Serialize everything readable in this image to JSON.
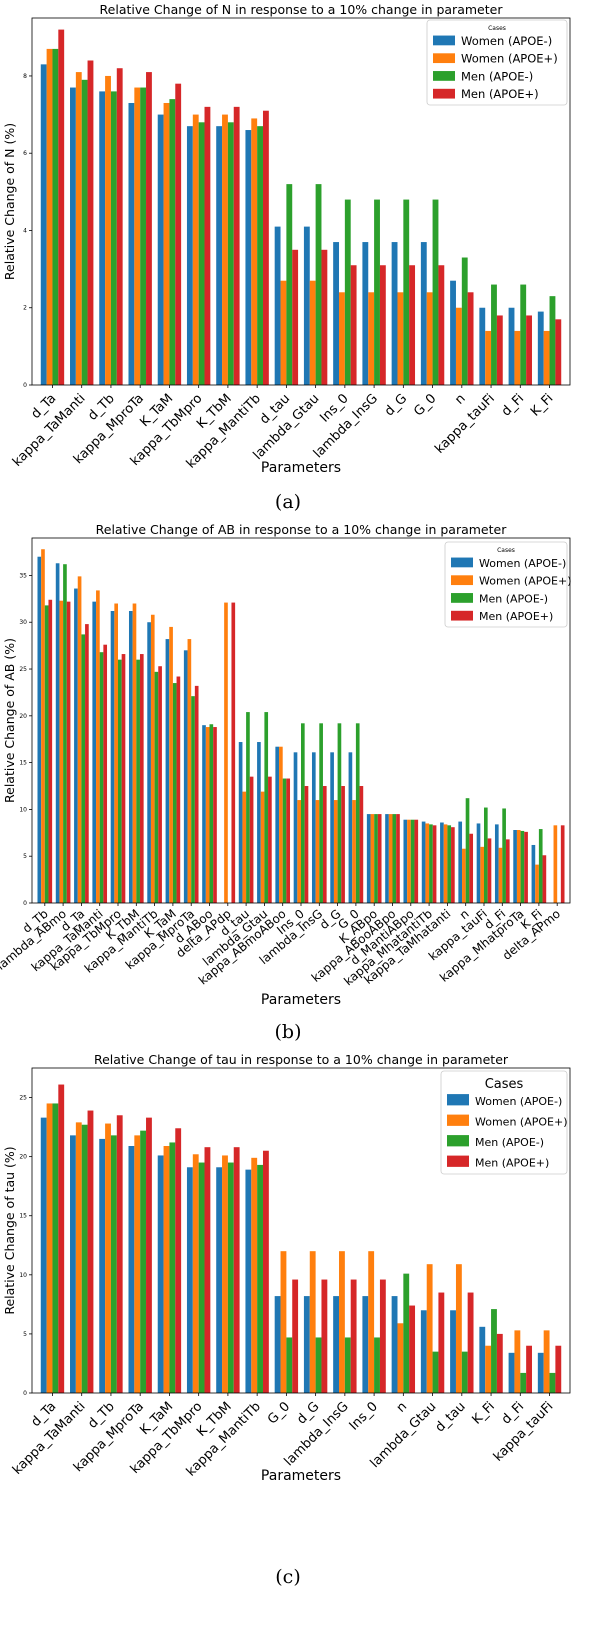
{
  "chart_data": [
    {
      "type": "bar",
      "title": "Relative Change of N in response to a 10% change in parameter",
      "xlabel": "Parameters",
      "ylabel": "Relative Change of N (%)",
      "ylim": [
        0,
        9.5
      ],
      "yticks": [
        0,
        2,
        4,
        6,
        8
      ],
      "legend_title": "Cases",
      "legend_position": "top-right",
      "caption": "(a)",
      "categories": [
        "d_Ta",
        "kappa_TaManti",
        "d_Tb",
        "kappa_MproTa",
        "K_TaM",
        "kappa_TbMpro",
        "K_TbM",
        "kappa_MantiTb",
        "d_tau",
        "lambda_Gtau",
        "Ins_0",
        "lambda_InsG",
        "d_G",
        "G_0",
        "n",
        "kappa_tauFi",
        "d_Fi",
        "K_Fi"
      ],
      "series": [
        {
          "name": "Women (APOE-)",
          "color": "#1f77b4",
          "values": [
            8.3,
            7.7,
            7.6,
            7.3,
            7.0,
            6.7,
            6.7,
            6.6,
            4.1,
            4.1,
            3.7,
            3.7,
            3.7,
            3.7,
            2.7,
            2.0,
            2.0,
            1.9
          ]
        },
        {
          "name": "Women (APOE+)",
          "color": "#ff7f0e",
          "values": [
            8.7,
            8.1,
            8.0,
            7.7,
            7.3,
            7.0,
            7.0,
            6.9,
            2.7,
            2.7,
            2.4,
            2.4,
            2.4,
            2.4,
            2.0,
            1.4,
            1.4,
            1.4
          ]
        },
        {
          "name": "Men (APOE-)",
          "color": "#2ca02c",
          "values": [
            8.7,
            7.9,
            7.6,
            7.7,
            7.4,
            6.8,
            6.8,
            6.7,
            5.2,
            5.2,
            4.8,
            4.8,
            4.8,
            4.8,
            3.3,
            2.6,
            2.6,
            2.3
          ]
        },
        {
          "name": "Men (APOE+)",
          "color": "#d62728",
          "values": [
            9.2,
            8.4,
            8.2,
            8.1,
            7.8,
            7.2,
            7.2,
            7.1,
            3.5,
            3.5,
            3.1,
            3.1,
            3.1,
            3.1,
            2.4,
            1.8,
            1.8,
            1.7
          ]
        }
      ]
    },
    {
      "type": "bar",
      "title": "Relative Change of AB in response to a 10% change in parameter",
      "xlabel": "Parameters",
      "ylabel": "Relative Change of AB (%)",
      "ylim": [
        0,
        39
      ],
      "yticks": [
        0,
        5,
        10,
        15,
        20,
        25,
        30,
        35
      ],
      "legend_title": "Cases",
      "legend_position": "top-right",
      "caption": "(b)",
      "categories": [
        "d_Tb",
        "lambda_ABmo",
        "d_Ta",
        "kappa_TaManti",
        "kappa_TbMpro",
        "K_TbM",
        "kappa_MantiTb",
        "K_TaM",
        "kappa_MproTa",
        "d_ABoo",
        "delta_APdp",
        "d_tau",
        "lambda_Gtau",
        "kappa_ABmoABoo",
        "Ins_0",
        "lambda_InsG",
        "d_G",
        "G_0",
        "K_ABpo",
        "kappa_ABooABpo",
        "d_MantiABpo",
        "kappa_MhatantiTb",
        "kappa_TaMhatanti",
        "n",
        "kappa_tauFi",
        "d_Fi",
        "kappa_MhatproTa",
        "K_Fi",
        "delta_APmo"
      ],
      "series": [
        {
          "name": "Women (APOE-)",
          "color": "#1f77b4",
          "values": [
            37.0,
            36.3,
            33.6,
            32.2,
            31.2,
            31.2,
            30.0,
            28.2,
            27.0,
            19.0,
            0,
            17.2,
            17.2,
            16.7,
            16.1,
            16.1,
            16.1,
            16.1,
            9.5,
            9.5,
            8.9,
            8.7,
            8.6,
            8.7,
            8.5,
            8.4,
            7.8,
            6.2,
            0
          ]
        },
        {
          "name": "Women (APOE+)",
          "color": "#ff7f0e",
          "values": [
            37.8,
            32.3,
            34.9,
            33.4,
            32.0,
            32.0,
            30.8,
            29.5,
            28.2,
            18.8,
            32.1,
            11.9,
            11.9,
            16.7,
            11.0,
            11.0,
            11.0,
            11.0,
            9.5,
            9.5,
            8.9,
            8.5,
            8.4,
            5.8,
            6.0,
            5.9,
            7.8,
            4.1,
            8.3
          ]
        },
        {
          "name": "Men (APOE-)",
          "color": "#2ca02c",
          "values": [
            31.8,
            36.2,
            28.7,
            26.8,
            26.0,
            26.0,
            24.7,
            23.5,
            22.1,
            19.1,
            0,
            20.4,
            20.4,
            13.3,
            19.2,
            19.2,
            19.2,
            19.2,
            9.5,
            9.5,
            8.9,
            8.4,
            8.3,
            11.2,
            10.2,
            10.1,
            7.7,
            7.9,
            0
          ]
        },
        {
          "name": "Men (APOE+)",
          "color": "#d62728",
          "values": [
            32.4,
            32.2,
            29.8,
            27.6,
            26.6,
            26.6,
            25.3,
            24.2,
            23.2,
            18.8,
            32.1,
            13.5,
            13.5,
            13.3,
            12.5,
            12.5,
            12.5,
            12.5,
            9.5,
            9.5,
            8.9,
            8.3,
            8.1,
            7.4,
            6.9,
            6.8,
            7.6,
            5.1,
            8.3
          ]
        }
      ]
    },
    {
      "type": "bar",
      "title": "Relative Change of tau in response to a 10% change in parameter",
      "xlabel": "Parameters",
      "ylabel": "Relative Change of tau (%)",
      "ylim": [
        0,
        27.5
      ],
      "yticks": [
        0,
        5,
        10,
        15,
        20,
        25
      ],
      "legend_title": "Cases",
      "legend_position": "top-right",
      "caption": "(c)",
      "categories": [
        "d_Ta",
        "kappa_TaManti",
        "d_Tb",
        "kappa_MproTa",
        "K_TaM",
        "kappa_TbMpro",
        "K_TbM",
        "kappa_MantiTb",
        "G_0",
        "d_G",
        "lambda_InsG",
        "Ins_0",
        "n",
        "lambda_Gtau",
        "d_tau",
        "K_Fi",
        "d_Fi",
        "kappa_tauFi"
      ],
      "series": [
        {
          "name": "Women (APOE-)",
          "color": "#1f77b4",
          "values": [
            23.3,
            21.8,
            21.5,
            20.9,
            20.1,
            19.1,
            19.1,
            18.9,
            8.2,
            8.2,
            8.2,
            8.2,
            8.2,
            7.0,
            7.0,
            5.6,
            3.4,
            3.4
          ]
        },
        {
          "name": "Women (APOE+)",
          "color": "#ff7f0e",
          "values": [
            24.5,
            22.9,
            22.8,
            21.8,
            20.9,
            20.2,
            20.1,
            19.9,
            12.0,
            12.0,
            12.0,
            12.0,
            5.9,
            10.9,
            10.9,
            4.0,
            5.3,
            5.3
          ]
        },
        {
          "name": "Men (APOE-)",
          "color": "#2ca02c",
          "values": [
            24.5,
            22.7,
            21.8,
            22.2,
            21.2,
            19.5,
            19.5,
            19.3,
            4.7,
            4.7,
            4.7,
            4.7,
            10.1,
            3.5,
            3.5,
            7.1,
            1.7,
            1.7
          ]
        },
        {
          "name": "Men (APOE+)",
          "color": "#d62728",
          "values": [
            26.1,
            23.9,
            23.5,
            23.3,
            22.4,
            20.8,
            20.8,
            20.5,
            9.6,
            9.6,
            9.6,
            9.6,
            7.4,
            8.5,
            8.5,
            5.0,
            4.0,
            4.0
          ]
        }
      ]
    }
  ]
}
